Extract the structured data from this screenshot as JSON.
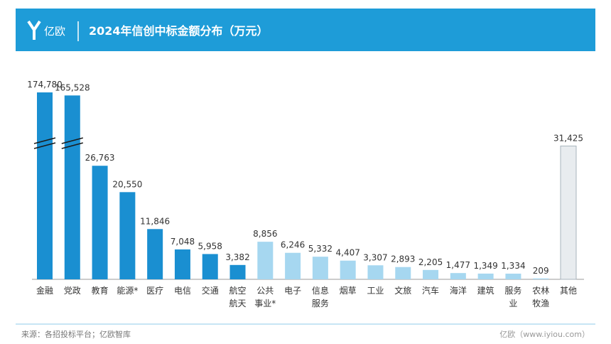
{
  "brand": "亿欧",
  "chart_data": {
    "type": "bar",
    "title": "2024年信创中标金额分布（万元）",
    "categories": [
      "金融",
      "党政",
      "教育",
      "能源*",
      "医疗",
      "电信",
      "交通",
      "航空\n航天",
      "公共\n事业*",
      "电子",
      "信息\n服务",
      "烟草",
      "工业",
      "文旅",
      "汽车",
      "海洋",
      "建筑",
      "服务\n业",
      "农林\n牧渔",
      "其他"
    ],
    "values": [
      174780,
      165528,
      26763,
      20550,
      11846,
      7048,
      5958,
      3382,
      8856,
      6246,
      5332,
      4407,
      3307,
      2893,
      2205,
      1477,
      1349,
      1334,
      209,
      31425
    ],
    "value_labels": [
      "174,780",
      "165,528",
      "26,763",
      "20,550",
      "11,846",
      "7,048",
      "5,958",
      "3,382",
      "8,856",
      "6,246",
      "5,332",
      "4,407",
      "3,307",
      "2,893",
      "2,205",
      "1,477",
      "1,349",
      "1,334",
      "209",
      "31,425"
    ],
    "colors": [
      "#1a8fd1",
      "#1a8fd1",
      "#1a8fd1",
      "#1a8fd1",
      "#1a8fd1",
      "#1a8fd1",
      "#1a8fd1",
      "#1a8fd1",
      "#a6d7f0",
      "#a6d7f0",
      "#a6d7f0",
      "#a6d7f0",
      "#a6d7f0",
      "#a6d7f0",
      "#a6d7f0",
      "#a6d7f0",
      "#a6d7f0",
      "#a6d7f0",
      "#a6d7f0",
      "#e8ecef"
    ],
    "ylim": [
      0,
      33000
    ],
    "axis_break": true
  },
  "footer": {
    "source": "来源：各招投标平台；亿欧智库",
    "site": "亿欧（www.iyiou.com）"
  }
}
